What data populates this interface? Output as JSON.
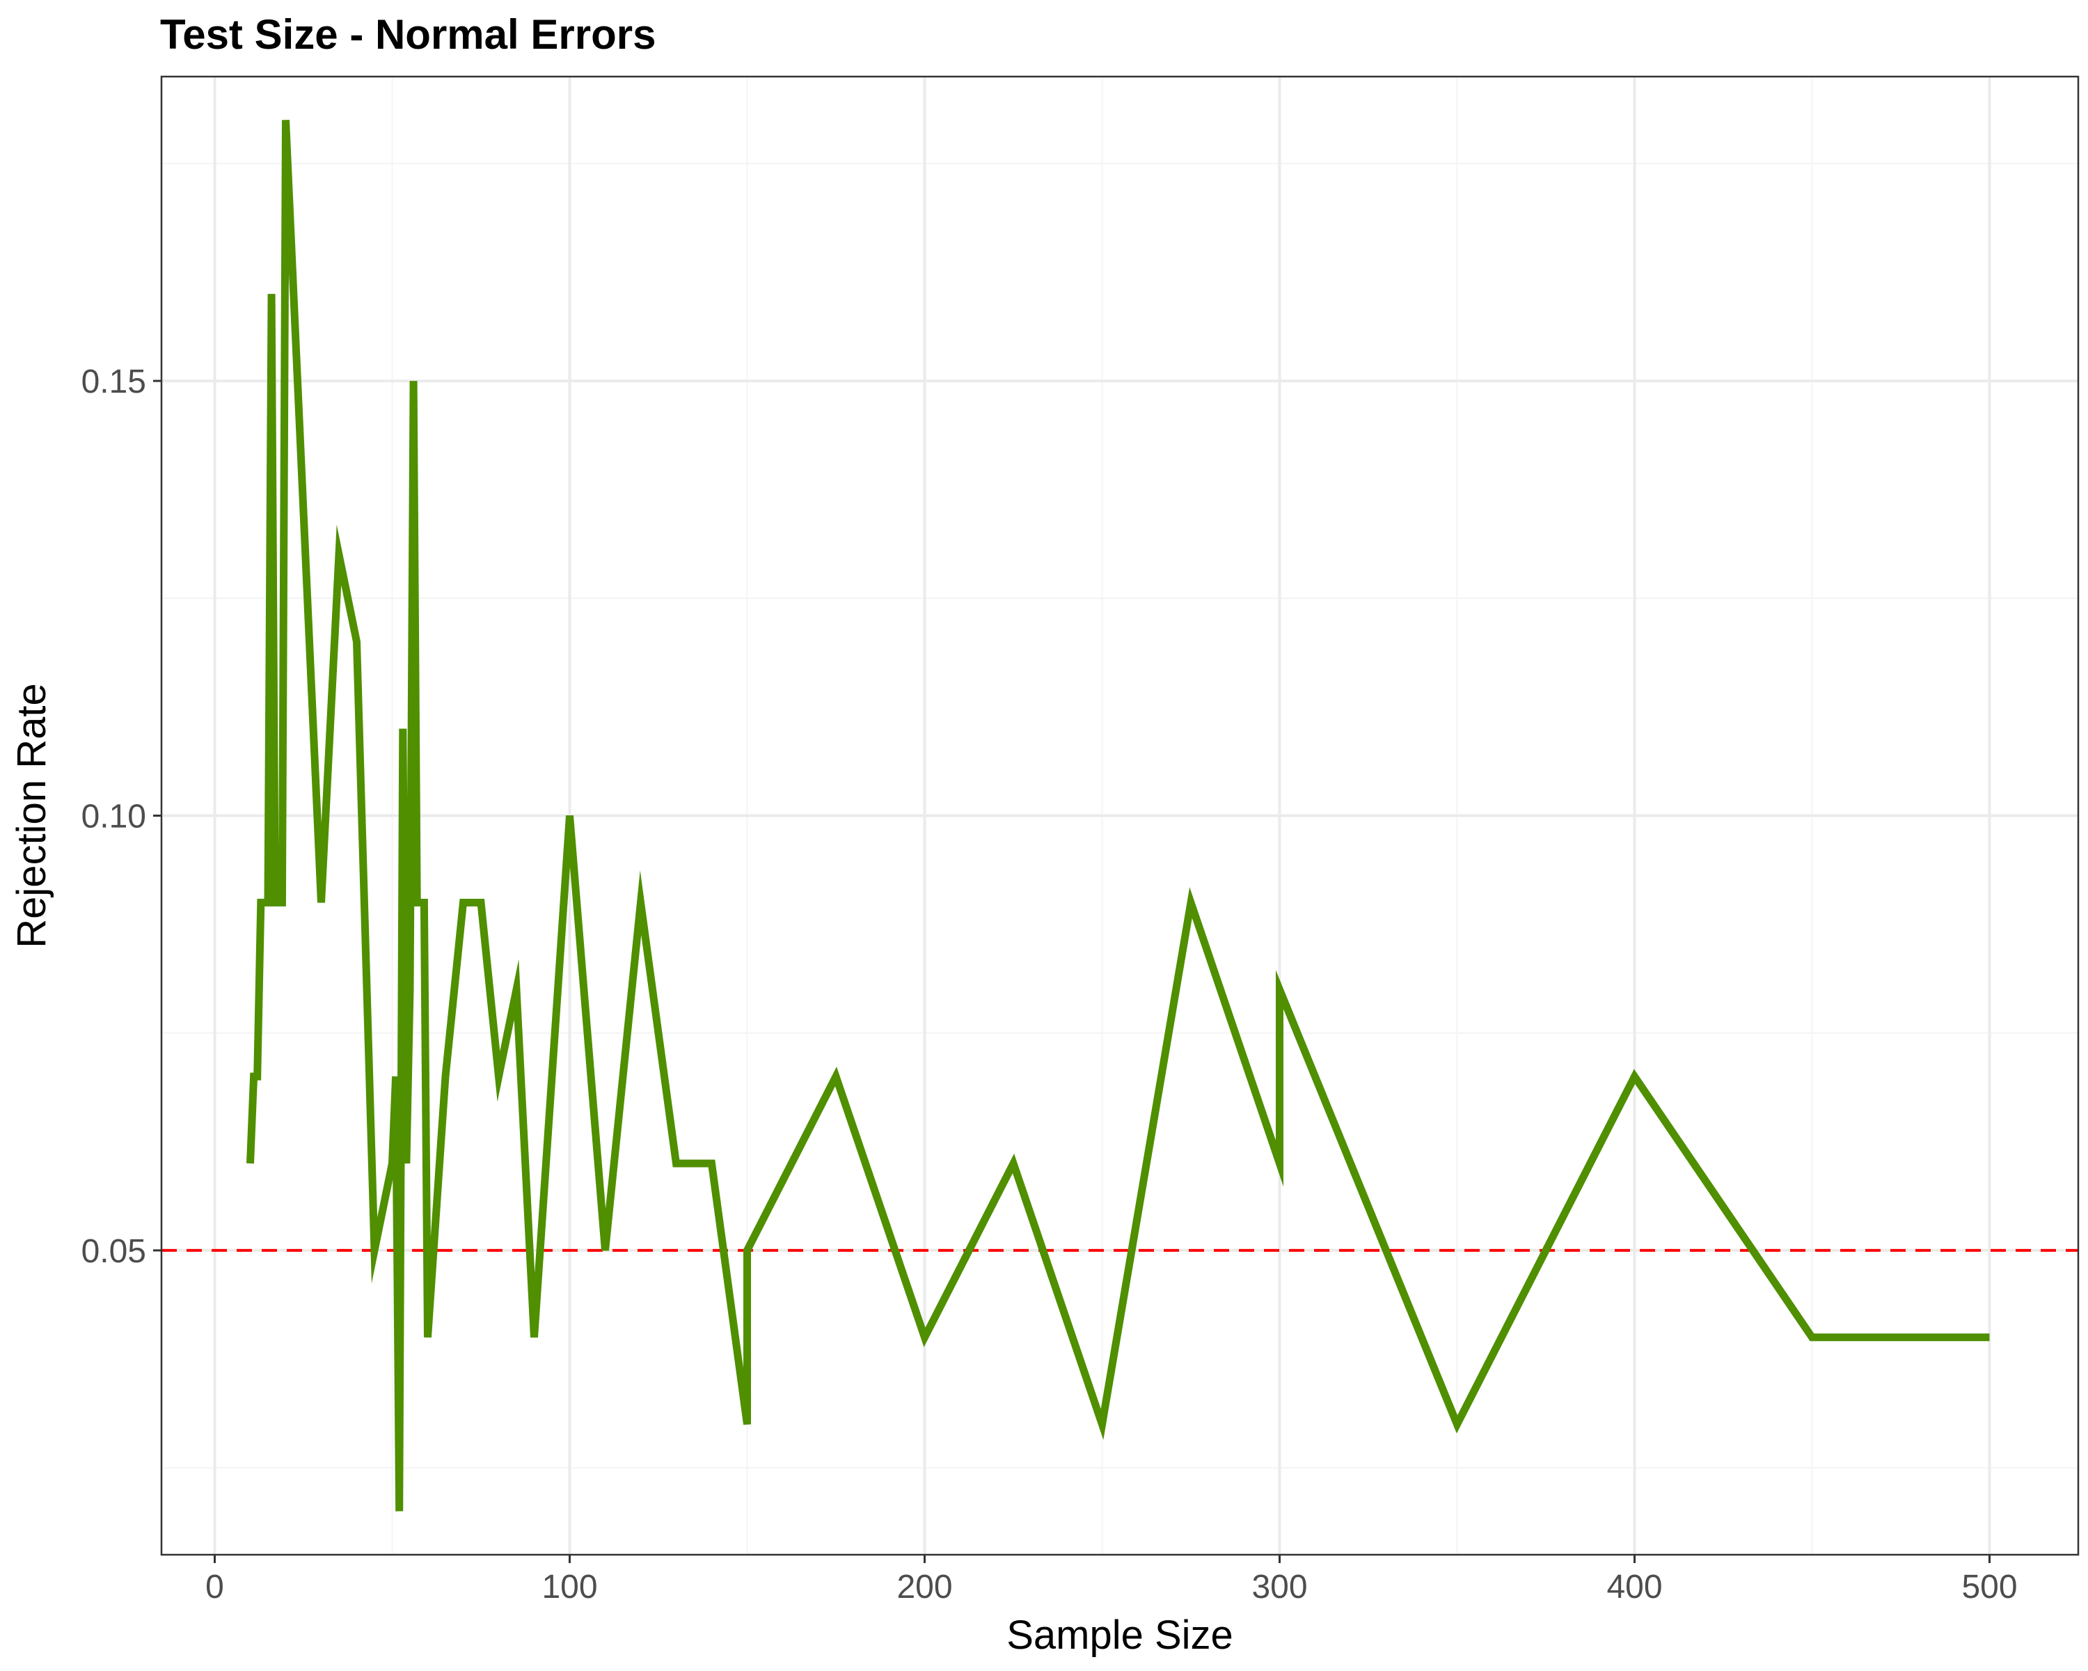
{
  "chart_data": {
    "type": "line",
    "title": "Test Size - Normal Errors",
    "xlabel": "Sample Size",
    "ylabel": "Rejection Rate",
    "xlim": [
      -15,
      525
    ],
    "ylim": [
      0.015,
      0.185
    ],
    "x_ticks": [
      0,
      100,
      200,
      300,
      400,
      500
    ],
    "x_tick_labels": [
      "0",
      "100",
      "200",
      "300",
      "400",
      "500"
    ],
    "y_ticks": [
      0.05,
      0.1,
      0.15
    ],
    "y_tick_labels": [
      "0.05",
      "0.10",
      "0.15"
    ],
    "y_minor_ticks": [
      0.025,
      0.075,
      0.125,
      0.175
    ],
    "x_minor_ticks": [
      50,
      150,
      250,
      350,
      450
    ],
    "grid": true,
    "legend": "none",
    "series": [
      {
        "color": "#4f8f00",
        "x": [
          10,
          11,
          12,
          13,
          14,
          15,
          16,
          17,
          18,
          19,
          20,
          30,
          35,
          40,
          45,
          50,
          51,
          52,
          53,
          54,
          55,
          56,
          57,
          58,
          59,
          60,
          65,
          70,
          75,
          80,
          85,
          90,
          100,
          110,
          120,
          130,
          140,
          150,
          150,
          175,
          200,
          225,
          250,
          275,
          300,
          300,
          350,
          400,
          450,
          500
        ],
        "y": [
          0.06,
          0.07,
          0.07,
          0.09,
          0.09,
          0.09,
          0.16,
          0.09,
          0.09,
          0.09,
          0.18,
          0.09,
          0.13,
          0.12,
          0.05,
          0.06,
          0.07,
          0.02,
          0.11,
          0.06,
          0.08,
          0.15,
          0.09,
          0.09,
          0.09,
          0.04,
          0.07,
          0.09,
          0.09,
          0.07,
          0.08,
          0.04,
          0.1,
          0.05,
          0.09,
          0.06,
          0.06,
          0.03,
          0.05,
          0.07,
          0.04,
          0.06,
          0.03,
          0.09,
          0.06,
          0.08,
          0.03,
          0.07,
          0.04,
          0.04
        ]
      }
    ],
    "reference_line": {
      "y": 0.05,
      "color": "#ff0000",
      "style": "dashed"
    },
    "colors": {
      "background": "#ffffff",
      "panel_border": "#333333",
      "grid_major": "#ebebeb",
      "grid_minor": "#f4f4f4",
      "tick": "#333333"
    }
  }
}
